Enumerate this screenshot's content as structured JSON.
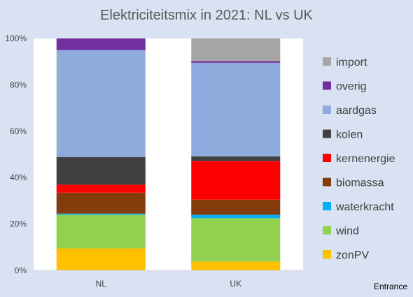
{
  "chart_data": {
    "type": "bar",
    "stacked": "percent",
    "title": "Elektriciteitsmix in 2021: NL vs UK",
    "categories": [
      "NL",
      "UK"
    ],
    "y_ticks": [
      "0%",
      "20%",
      "40%",
      "60%",
      "80%",
      "100%"
    ],
    "ylim": [
      0,
      100
    ],
    "grid": false,
    "legend_position": "right",
    "series": [
      {
        "name": "zonPV",
        "color": "#ffc000",
        "values": [
          9.5,
          3.8
        ]
      },
      {
        "name": "wind",
        "color": "#92d050",
        "values": [
          14.5,
          18.7
        ]
      },
      {
        "name": "waterkracht",
        "color": "#00b0f0",
        "values": [
          0.5,
          1.5
        ]
      },
      {
        "name": "biomassa",
        "color": "#843c0c",
        "values": [
          9.0,
          6.5
        ]
      },
      {
        "name": "kernenergie",
        "color": "#ff0000",
        "values": [
          3.5,
          16.7
        ]
      },
      {
        "name": "kolen",
        "color": "#404040",
        "values": [
          11.9,
          2.0
        ]
      },
      {
        "name": "aardgas",
        "color": "#8faadc",
        "values": [
          46.1,
          40.3
        ]
      },
      {
        "name": "overig",
        "color": "#7030a0",
        "values": [
          5.0,
          0.7
        ]
      },
      {
        "name": "import",
        "color": "#a6a6a6",
        "values": [
          0.0,
          9.8
        ]
      }
    ]
  },
  "footer": {
    "credit": "Entrance"
  }
}
